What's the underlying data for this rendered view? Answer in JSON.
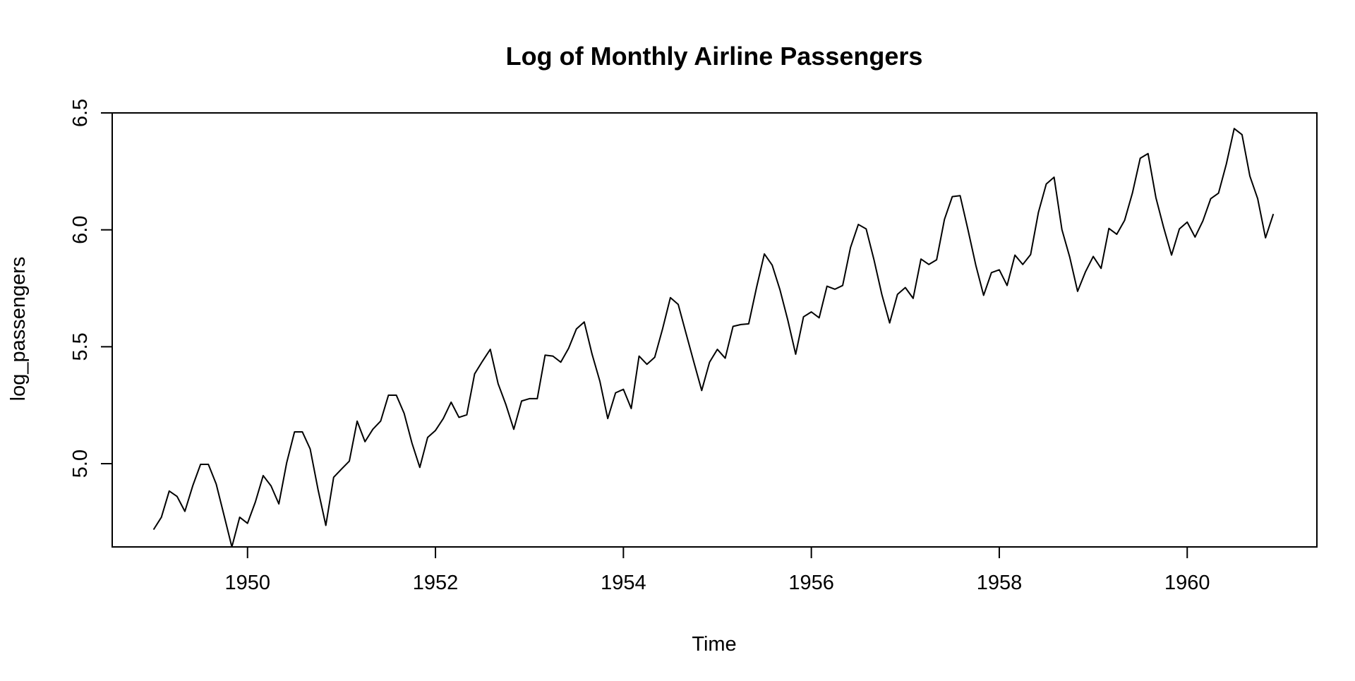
{
  "chart_data": {
    "type": "line",
    "title": "Log of Monthly Airline Passengers",
    "xlabel": "Time",
    "ylabel": "log_passengers",
    "xlim": [
      1948.56,
      1961.38
    ],
    "ylim": [
      4.644,
      6.5
    ],
    "xticks": [
      1950,
      1952,
      1954,
      1956,
      1958,
      1960
    ],
    "xtick_labels": [
      "1950",
      "1952",
      "1954",
      "1956",
      "1958",
      "1960"
    ],
    "yticks": [
      5.0,
      5.5,
      6.0,
      6.5
    ],
    "ytick_labels": [
      "5.0",
      "5.5",
      "6.0",
      "6.5"
    ],
    "grid": false,
    "line_color": "#000000",
    "series": [
      {
        "name": "log_passengers",
        "x_start": 1949.0,
        "x_step": 0.08333333,
        "values": [
          4.718,
          4.771,
          4.883,
          4.86,
          4.796,
          4.905,
          4.997,
          4.997,
          4.913,
          4.779,
          4.644,
          4.771,
          4.745,
          4.836,
          4.949,
          4.905,
          4.828,
          5.004,
          5.136,
          5.136,
          5.063,
          4.89,
          4.736,
          4.942,
          4.977,
          5.011,
          5.182,
          5.094,
          5.147,
          5.182,
          5.293,
          5.293,
          5.215,
          5.088,
          4.984,
          5.112,
          5.142,
          5.193,
          5.263,
          5.198,
          5.209,
          5.384,
          5.438,
          5.489,
          5.342,
          5.252,
          5.147,
          5.268,
          5.278,
          5.278,
          5.464,
          5.46,
          5.434,
          5.493,
          5.576,
          5.606,
          5.468,
          5.352,
          5.193,
          5.303,
          5.318,
          5.236,
          5.46,
          5.425,
          5.455,
          5.576,
          5.71,
          5.681,
          5.557,
          5.434,
          5.313,
          5.434,
          5.489,
          5.451,
          5.587,
          5.595,
          5.598,
          5.753,
          5.897,
          5.849,
          5.743,
          5.613,
          5.468,
          5.628,
          5.649,
          5.624,
          5.759,
          5.746,
          5.762,
          5.924,
          6.023,
          6.004,
          5.872,
          5.724,
          5.602,
          5.724,
          5.753,
          5.707,
          5.875,
          5.852,
          5.872,
          6.045,
          6.142,
          6.146,
          6.001,
          5.849,
          5.72,
          5.817,
          5.829,
          5.762,
          5.892,
          5.852,
          5.894,
          6.075,
          6.196,
          6.225,
          6.001,
          5.883,
          5.737,
          5.82,
          5.886,
          5.835,
          6.006,
          5.981,
          6.04,
          6.157,
          6.306,
          6.326,
          6.138,
          6.009,
          5.892,
          6.004,
          6.033,
          5.969,
          6.038,
          6.133,
          6.157,
          6.282,
          6.433,
          6.407,
          6.23,
          6.133,
          5.966,
          6.068
        ]
      }
    ]
  }
}
